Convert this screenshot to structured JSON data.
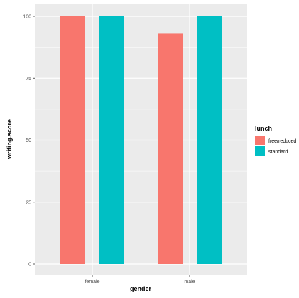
{
  "chart_data": {
    "type": "bar",
    "xlabel": "gender",
    "ylabel": "writing.score",
    "categories": [
      "female",
      "male"
    ],
    "series": [
      {
        "name": "free/reduced",
        "values": [
          100,
          93
        ],
        "color": "#f8766d"
      },
      {
        "name": "standard",
        "values": [
          100,
          100
        ],
        "color": "#00bfc4"
      }
    ],
    "ylim": [
      0,
      105
    ],
    "yticks": [
      0,
      25,
      50,
      75,
      100
    ],
    "grid": true,
    "legend": {
      "title": "lunch",
      "placement": "right"
    },
    "panel_background": "#ebebeb",
    "grid_color": "#ffffff"
  }
}
